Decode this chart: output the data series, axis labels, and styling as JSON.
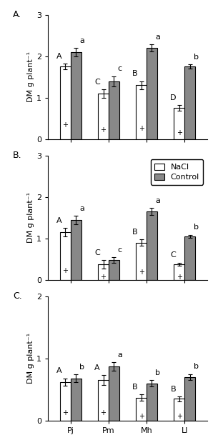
{
  "panels": [
    {
      "label": "A.",
      "ylabel": "DM g plant⁻¹",
      "ylim": [
        0,
        3
      ],
      "yticks": [
        0,
        1,
        2,
        3
      ],
      "nacl_values": [
        1.75,
        1.1,
        1.3,
        0.75
      ],
      "control_values": [
        2.1,
        1.4,
        2.2,
        1.75
      ],
      "nacl_errors": [
        0.07,
        0.1,
        0.1,
        0.07
      ],
      "control_errors": [
        0.1,
        0.12,
        0.08,
        0.05
      ],
      "nacl_letters": [
        "A",
        "C",
        "B",
        "D"
      ],
      "control_letters": [
        "a",
        "c",
        "a",
        "b"
      ],
      "show_legend": false
    },
    {
      "label": "B.",
      "ylabel": "DM g plant⁻¹",
      "ylim": [
        0,
        3
      ],
      "yticks": [
        0,
        1,
        2,
        3
      ],
      "nacl_values": [
        1.15,
        0.38,
        0.9,
        0.38
      ],
      "control_values": [
        1.45,
        0.48,
        1.65,
        1.05
      ],
      "nacl_errors": [
        0.1,
        0.1,
        0.08,
        0.04
      ],
      "control_errors": [
        0.1,
        0.07,
        0.08,
        0.04
      ],
      "nacl_letters": [
        "A",
        "C",
        "B",
        "C"
      ],
      "control_letters": [
        "a",
        "c",
        "a",
        "b"
      ],
      "show_legend": true
    },
    {
      "label": "C.",
      "ylabel": "DM g plant⁻¹",
      "ylim": [
        0,
        2
      ],
      "yticks": [
        0,
        1,
        2
      ],
      "nacl_values": [
        0.62,
        0.65,
        0.37,
        0.35
      ],
      "control_values": [
        0.68,
        0.87,
        0.6,
        0.7
      ],
      "nacl_errors": [
        0.06,
        0.08,
        0.05,
        0.04
      ],
      "control_errors": [
        0.06,
        0.07,
        0.05,
        0.05
      ],
      "nacl_letters": [
        "A",
        "A",
        "B",
        "B"
      ],
      "control_letters": [
        "b",
        "a",
        "b",
        "b"
      ],
      "show_legend": false
    }
  ],
  "species": [
    "Pj",
    "Pm",
    "Mh",
    "Ll"
  ],
  "nacl_color": "#ffffff",
  "control_color": "#888888",
  "bar_width": 0.28,
  "bar_edgecolor": "#000000",
  "plus_marker": "+",
  "legend_labels": [
    "NaCl",
    "Control"
  ],
  "background_color": "#ffffff",
  "fontsize_label": 8,
  "fontsize_letter": 8,
  "fontsize_tick": 8,
  "fontsize_legend": 8,
  "fontsize_panel": 9
}
